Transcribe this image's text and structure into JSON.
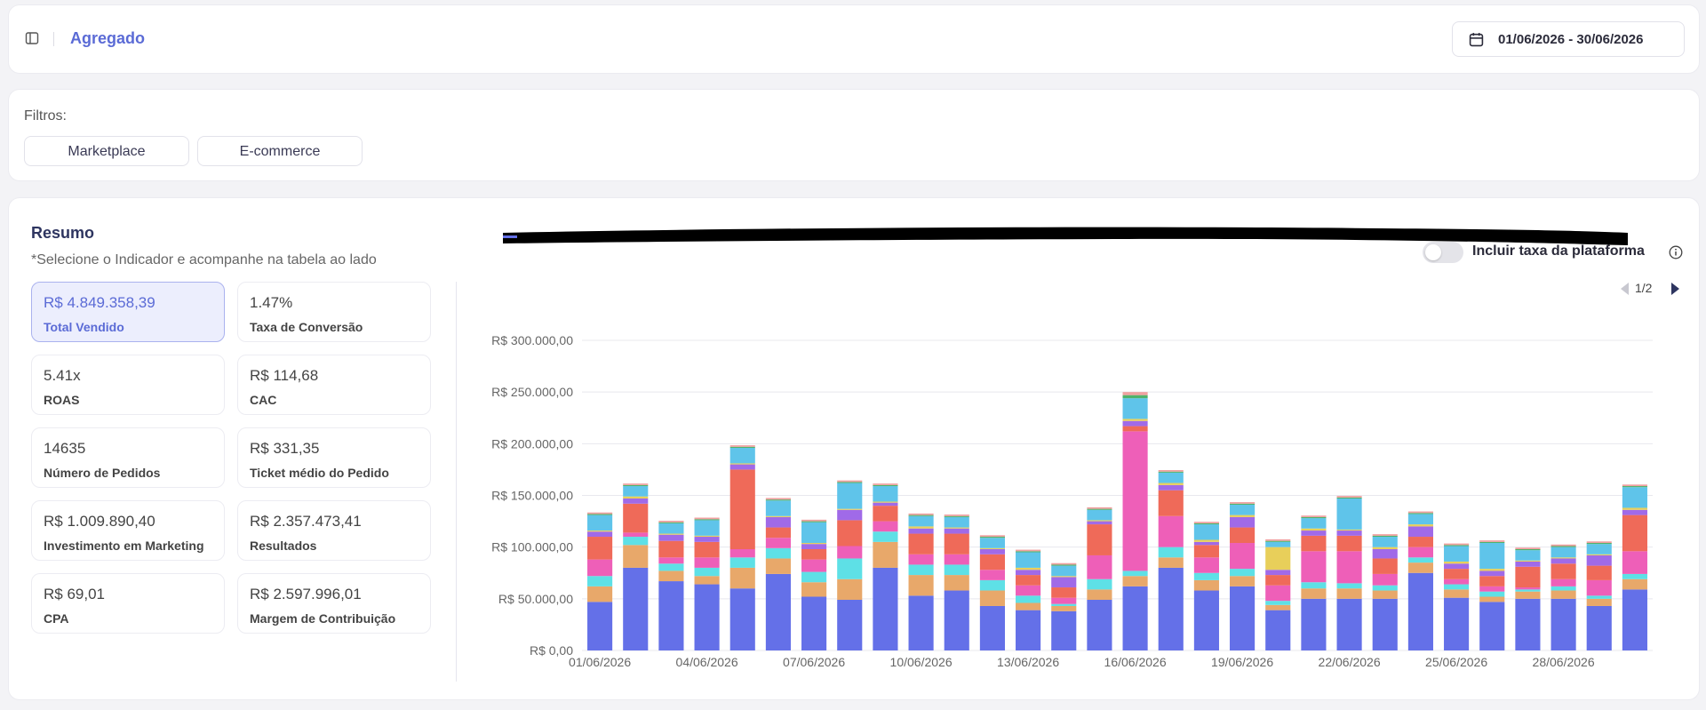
{
  "header": {
    "title": "Agregado",
    "date_range": "01/06/2026 - 30/06/2026"
  },
  "filters": {
    "label": "Filtros:",
    "chips": [
      "Marketplace",
      "E-commerce"
    ]
  },
  "resumo": {
    "title": "Resumo",
    "subtitle": "*Selecione o Indicador e acompanhe na tabela ao lado",
    "toggle_label": "Incluir taxa da plataforma",
    "toggle_on": false,
    "kpis": [
      {
        "value": "R$ 4.849.358,39",
        "label": "Total Vendido",
        "active": true
      },
      {
        "value": "1.47%",
        "label": "Taxa de Conversão"
      },
      {
        "value": "5.41x",
        "label": "ROAS"
      },
      {
        "value": "R$ 114,68",
        "label": "CAC"
      },
      {
        "value": "14635",
        "label": "Número de Pedidos"
      },
      {
        "value": "R$ 331,35",
        "label": "Ticket médio do Pedido"
      },
      {
        "value": "R$ 1.009.890,40",
        "label": "Investimento em Marketing"
      },
      {
        "value": "R$ 2.357.473,41",
        "label": "Resultados"
      },
      {
        "value": "R$ 69,01",
        "label": "CPA"
      },
      {
        "value": "R$ 2.597.996,01",
        "label": "Margem de Contribuição"
      }
    ]
  },
  "legend": {
    "page": "1/2"
  },
  "colors": {
    "accent": "#5b6bd6",
    "active_card_bg": "#eceefd"
  },
  "chart_data": {
    "type": "bar",
    "stacked": true,
    "ylim": [
      0,
      300000
    ],
    "yticks": [
      "R$ 0,00",
      "R$ 50.000,00",
      "R$ 100.000,00",
      "R$ 150.000,00",
      "R$ 200.000,00",
      "R$ 250.000,00",
      "R$ 300.000,00"
    ],
    "x_tick_labels": [
      "01/06/2026",
      "04/06/2026",
      "07/06/2026",
      "10/06/2026",
      "13/06/2026",
      "16/06/2026",
      "19/06/2026",
      "22/06/2026",
      "25/06/2026",
      "28/06/2026"
    ],
    "categories": [
      "01/06",
      "02/06",
      "03/06",
      "04/06",
      "05/06",
      "06/06",
      "07/06",
      "08/06",
      "09/06",
      "10/06",
      "11/06",
      "12/06",
      "13/06",
      "14/06",
      "15/06",
      "16/06",
      "17/06",
      "18/06",
      "19/06",
      "20/06",
      "21/06",
      "22/06",
      "23/06",
      "24/06",
      "25/06",
      "26/06",
      "27/06",
      "28/06",
      "29/06",
      "30/06"
    ],
    "grid": true,
    "series": [
      {
        "color": "#6470e8",
        "values": [
          47000,
          80000,
          67000,
          64000,
          60000,
          74000,
          52000,
          49000,
          80000,
          53000,
          58000,
          43000,
          39000,
          38000,
          49000,
          62000,
          80000,
          58000,
          62000,
          39000,
          50000,
          50000,
          50000,
          75000,
          51000,
          47000,
          50000,
          50000,
          43000,
          59000
        ]
      },
      {
        "color": "#e8a86a",
        "values": [
          15000,
          22000,
          10000,
          8000,
          20000,
          15000,
          14000,
          20000,
          25000,
          20000,
          15000,
          15000,
          7000,
          5000,
          10000,
          10000,
          10000,
          10000,
          10000,
          5000,
          10000,
          10000,
          8000,
          10000,
          8000,
          5000,
          7000,
          8000,
          7000,
          10000
        ]
      },
      {
        "color": "#5ee0e6",
        "values": [
          10000,
          8000,
          7000,
          8000,
          10000,
          10000,
          10000,
          20000,
          10000,
          10000,
          10000,
          10000,
          7000,
          2000,
          10000,
          5000,
          10000,
          7000,
          7000,
          4000,
          6000,
          5000,
          5000,
          5000,
          5000,
          5000,
          2000,
          4000,
          3000,
          5000
        ]
      },
      {
        "color": "#ee5fb8",
        "values": [
          16000,
          4000,
          6000,
          10000,
          8000,
          10000,
          12000,
          12000,
          10000,
          10000,
          10000,
          10000,
          10000,
          6000,
          23000,
          135000,
          30000,
          15000,
          25000,
          15000,
          30000,
          31000,
          11000,
          10000,
          5000,
          5000,
          2000,
          7000,
          15000,
          22000
        ]
      },
      {
        "color": "#ef6a59",
        "values": [
          22000,
          28000,
          16000,
          15000,
          77000,
          10000,
          10000,
          25000,
          15000,
          20000,
          20000,
          15000,
          10000,
          10000,
          30000,
          5000,
          25000,
          12000,
          15000,
          10000,
          15000,
          15000,
          15000,
          10000,
          10000,
          10000,
          20000,
          15000,
          14000,
          35000
        ]
      },
      {
        "color": "#a06ae8",
        "values": [
          5000,
          5000,
          6000,
          5000,
          5000,
          10000,
          5000,
          10000,
          3000,
          5000,
          5000,
          5000,
          5000,
          10000,
          3000,
          5000,
          5000,
          3000,
          10000,
          5000,
          5000,
          5000,
          9000,
          10000,
          5000,
          5000,
          5000,
          5000,
          10000,
          5000
        ]
      },
      {
        "color": "#e8cf5a",
        "values": [
          1000,
          2000,
          1000,
          1000,
          1000,
          1000,
          1000,
          1000,
          1000,
          2000,
          1000,
          1000,
          2000,
          1000,
          1000,
          2000,
          2000,
          2000,
          2000,
          22000,
          2000,
          1000,
          2000,
          2000,
          2000,
          2000,
          1000,
          1000,
          1000,
          2000
        ]
      },
      {
        "color": "#5fc4ea",
        "values": [
          15000,
          10000,
          10000,
          15000,
          15000,
          15000,
          20000,
          25000,
          15000,
          10000,
          10000,
          10000,
          15000,
          10000,
          10000,
          20000,
          10000,
          15000,
          10000,
          5000,
          10000,
          30000,
          10000,
          10000,
          15000,
          25000,
          10000,
          10000,
          10000,
          20000
        ]
      },
      {
        "color": "#4fb26a",
        "values": [
          1000,
          1000,
          1000,
          1000,
          1000,
          1000,
          1000,
          1000,
          1000,
          1000,
          1000,
          1000,
          1000,
          1000,
          1000,
          3000,
          1000,
          1000,
          1000,
          1000,
          1000,
          1000,
          1000,
          1000,
          1000,
          1000,
          1000,
          1000,
          1000,
          1000
        ]
      },
      {
        "color": "#f0a0a0",
        "values": [
          1500,
          1500,
          1500,
          1500,
          1500,
          1500,
          1500,
          1500,
          1500,
          1500,
          1500,
          1500,
          1500,
          1500,
          1500,
          3000,
          1500,
          1500,
          1500,
          1500,
          1500,
          1500,
          1500,
          1500,
          1500,
          1500,
          1500,
          1500,
          1500,
          1500
        ]
      }
    ]
  }
}
